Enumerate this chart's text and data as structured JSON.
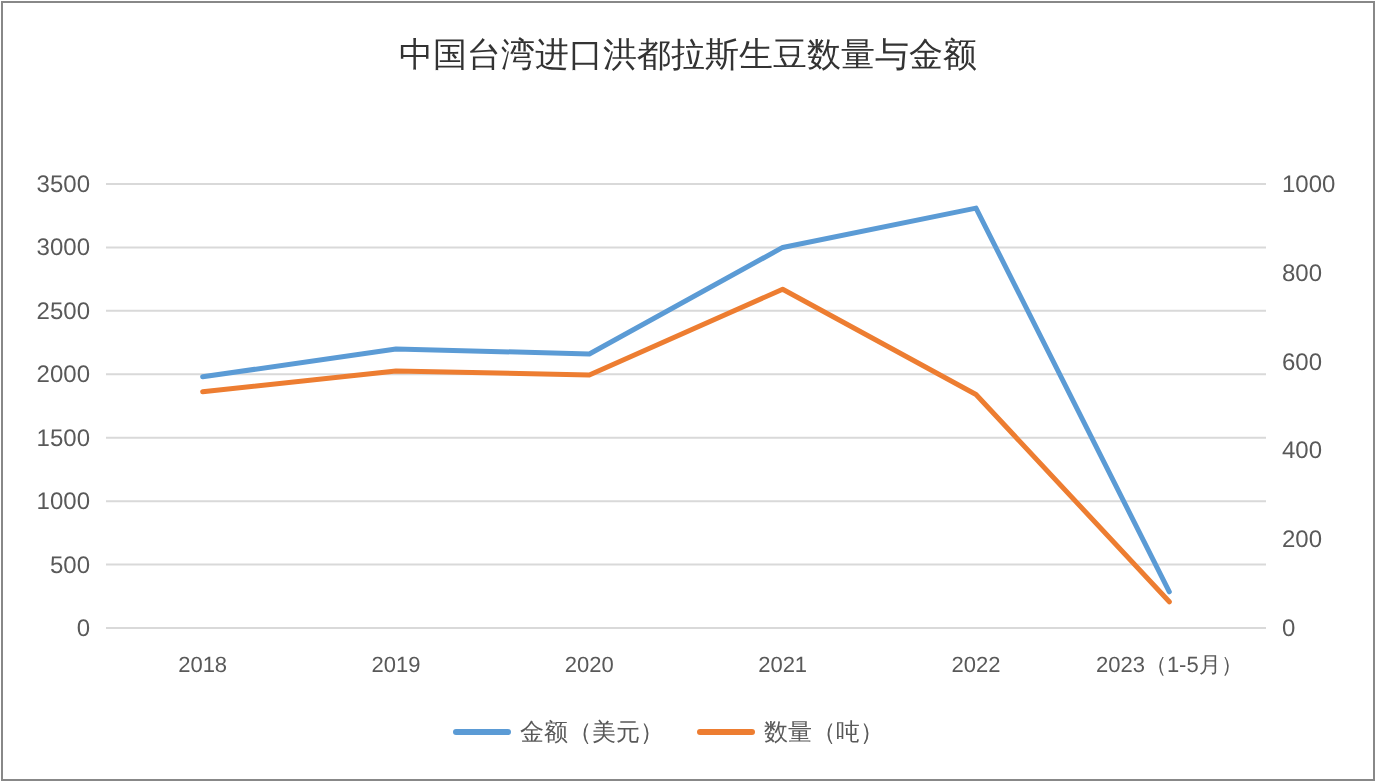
{
  "chart_data": {
    "type": "line",
    "title": "中国台湾进口洪都拉斯生豆数量与金额",
    "categories": [
      "2018",
      "2019",
      "2020",
      "2021",
      "2022",
      "2023（1-5月）"
    ],
    "series": [
      {
        "name": "金额（美元）",
        "color": "#5b9bd5",
        "values": [
          1980,
          2200,
          2160,
          3000,
          3310,
          285
        ]
      },
      {
        "name": "数量（吨）",
        "color": "#ed7d31",
        "axis": "y2",
        "values": [
          532,
          579,
          570,
          763,
          526,
          59
        ]
      }
    ],
    "ylim": [
      0,
      3500
    ],
    "yticks": [
      0,
      500,
      1000,
      1500,
      2000,
      2500,
      3000,
      3500
    ],
    "y2lim": [
      0,
      1000
    ],
    "y2ticks": [
      0,
      200,
      400,
      600,
      800,
      1000
    ],
    "grid": "y",
    "legend": "bottom",
    "marker": "none",
    "line_style": "solid"
  }
}
